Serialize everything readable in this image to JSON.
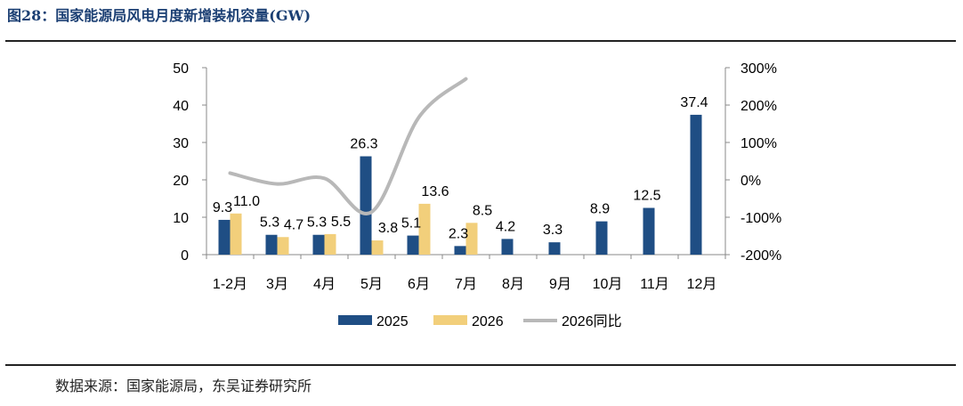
{
  "header": {
    "title": "图28：国家能源局风电月度新增装机容量(GW)"
  },
  "footer": {
    "source": "数据来源：国家能源局，东吴证券研究所"
  },
  "colors": {
    "s2025": "#1f4e84",
    "s2026": "#f2cf7b",
    "yoy": "#b8b8b8",
    "rule": "#222222"
  },
  "chart_data": {
    "type": "bar",
    "categories": [
      "1-2月",
      "3月",
      "4月",
      "5月",
      "6月",
      "7月",
      "8月",
      "9月",
      "10月",
      "11月",
      "12月"
    ],
    "series": [
      {
        "name": "2025",
        "type": "bar",
        "axis": "left",
        "values": [
          9.3,
          5.3,
          5.3,
          26.3,
          5.1,
          2.3,
          4.2,
          3.3,
          8.9,
          12.5,
          37.4
        ],
        "labels": [
          "9.3",
          "5.3",
          "5.3",
          "26.3",
          "5.1",
          "2.3",
          "4.2",
          "3.3",
          "8.9",
          "12.5",
          "37.4"
        ]
      },
      {
        "name": "2026",
        "type": "bar",
        "axis": "left",
        "values": [
          11.0,
          4.7,
          5.5,
          3.8,
          13.6,
          8.5,
          null,
          null,
          null,
          null,
          null
        ],
        "labels": [
          "11.0",
          "4.7",
          "5.5",
          "3.8",
          "13.6",
          "8.5",
          null,
          null,
          null,
          null,
          null
        ]
      },
      {
        "name": "2026同比",
        "type": "line",
        "axis": "right",
        "smooth": true,
        "values": [
          18,
          -11,
          4,
          -86,
          167,
          270,
          null,
          null,
          null,
          null,
          null
        ]
      }
    ],
    "yleft": {
      "min": 0,
      "max": 50,
      "ticks": [
        "0",
        "10",
        "20",
        "30",
        "40",
        "50"
      ]
    },
    "yright": {
      "min": -200,
      "max": 300,
      "ticks": [
        "-200%",
        "-100%",
        "0%",
        "100%",
        "200%",
        "300%"
      ]
    },
    "grid": false,
    "legend": "bottom"
  }
}
